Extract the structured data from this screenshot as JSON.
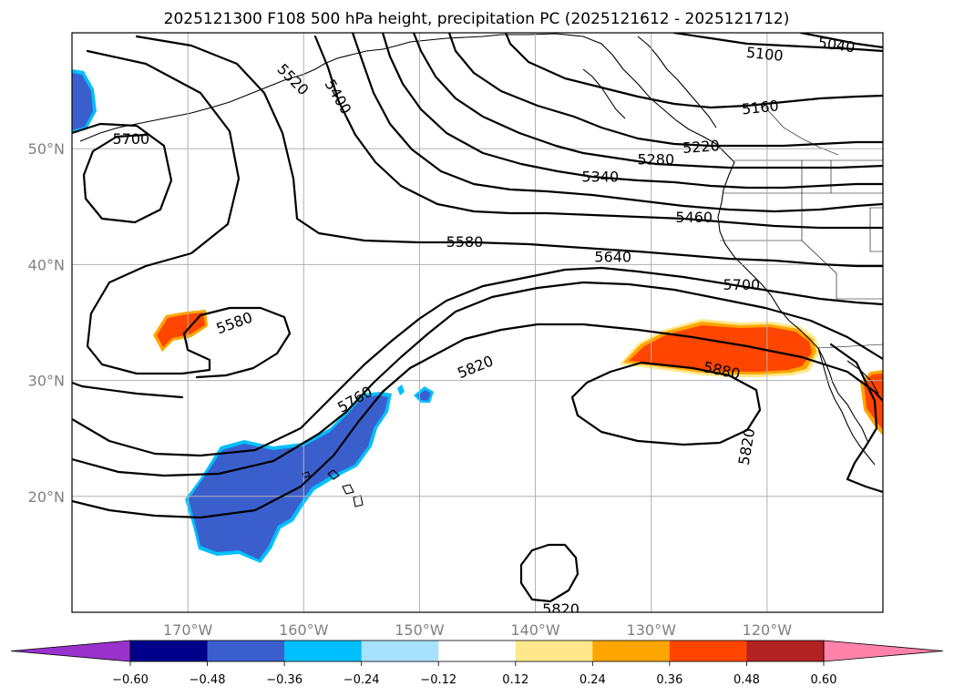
{
  "title": "2025121300 F108 500 hPa height, precipitation PC (2025121612 - 2025121712)",
  "map": {
    "lon_range": [
      -180,
      -110
    ],
    "lat_range": [
      10,
      60
    ],
    "lat_ticks": [
      {
        "value": 20,
        "label": "20°N"
      },
      {
        "value": 30,
        "label": "30°N"
      },
      {
        "value": 40,
        "label": "40°N"
      },
      {
        "value": 50,
        "label": "50°N"
      }
    ],
    "lon_ticks": [
      {
        "value": -170,
        "label": "170°W"
      },
      {
        "value": -160,
        "label": "160°W"
      },
      {
        "value": -150,
        "label": "150°W"
      },
      {
        "value": -140,
        "label": "140°W"
      },
      {
        "value": -130,
        "label": "130°W"
      },
      {
        "value": -120,
        "label": "120°W"
      }
    ]
  },
  "contour_labels": [
    {
      "text": "5040",
      "lon": -114.0,
      "lat": 59.0
    },
    {
      "text": "5100",
      "lon": -120.2,
      "lat": 58.2
    },
    {
      "text": "5160",
      "lon": -120.6,
      "lat": 53.6
    },
    {
      "text": "5220",
      "lon": -125.7,
      "lat": 50.2
    },
    {
      "text": "5280",
      "lon": -129.6,
      "lat": 49.1
    },
    {
      "text": "5340",
      "lon": -134.4,
      "lat": 47.6
    },
    {
      "text": "5400",
      "lon": -157.0,
      "lat": 54.5
    },
    {
      "text": "5460",
      "lon": -126.3,
      "lat": 44.1
    },
    {
      "text": "5520",
      "lon": -160.9,
      "lat": 56.0
    },
    {
      "text": "5580",
      "lon": -146.1,
      "lat": 42.0
    },
    {
      "text": "5580",
      "lon": -166.0,
      "lat": 35.0
    },
    {
      "text": "5640",
      "lon": -133.3,
      "lat": 40.7
    },
    {
      "text": "5700",
      "lon": -174.9,
      "lat": 50.9
    },
    {
      "text": "5700",
      "lon": -122.2,
      "lat": 38.3
    },
    {
      "text": "5760",
      "lon": -155.6,
      "lat": 28.4
    },
    {
      "text": "5820",
      "lon": -145.2,
      "lat": 31.2
    },
    {
      "text": "5820",
      "lon": -121.8,
      "lat": 24.3
    },
    {
      "text": "5820",
      "lon": -137.8,
      "lat": 10.3
    },
    {
      "text": "5880",
      "lon": -123.9,
      "lat": 30.9
    }
  ],
  "colorbar": {
    "ticks": [
      "−0.60",
      "−0.48",
      "−0.36",
      "−0.24",
      "−0.12",
      "0.12",
      "0.24",
      "0.36",
      "0.48",
      "0.60"
    ],
    "colors": [
      "#9932cc",
      "#00008b",
      "#3a5fcd",
      "#00bfff",
      "#a8e1fc",
      "#ffffff",
      "#ffe88c",
      "#ffa500",
      "#ff4500",
      "#b22222",
      "#ff82ab"
    ]
  }
}
